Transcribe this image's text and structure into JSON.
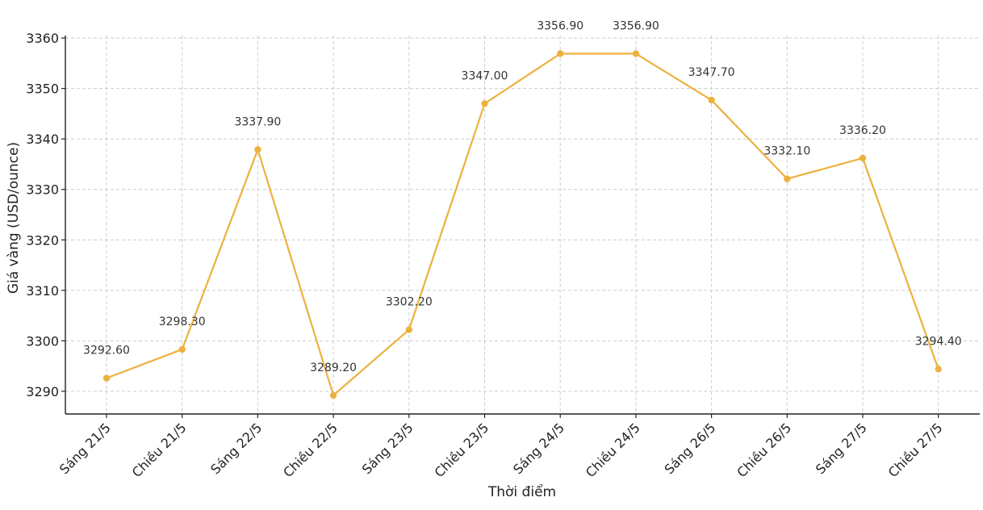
{
  "chart_data": {
    "type": "line",
    "title": "",
    "xlabel": "Thời điểm",
    "ylabel": "Giá vàng (USD/ounce)",
    "categories": [
      "Sáng 21/5",
      "Chiều 21/5",
      "Sáng 22/5",
      "Chiều 22/5",
      "Sáng 23/5",
      "Chiều 23/5",
      "Sáng 24/5",
      "Chiều 24/5",
      "Sáng 26/5",
      "Chiều 26/5",
      "Sáng 27/5",
      "Chiều 27/5"
    ],
    "series": [
      {
        "values": [
          3292.6,
          3298.3,
          3337.9,
          3289.2,
          3302.2,
          3347.0,
          3356.9,
          3356.9,
          3347.7,
          3332.1,
          3336.2,
          3294.4
        ],
        "labels": [
          "3292.60",
          "3298.30",
          "3337.90",
          "3289.20",
          "3302.20",
          "3347.00",
          "3356.90",
          "3356.90",
          "3347.70",
          "3332.10",
          "3336.20",
          "3294.40"
        ],
        "color": "#EDB13F"
      }
    ],
    "yticks": [
      3290,
      3300,
      3310,
      3320,
      3330,
      3340,
      3350,
      3360
    ],
    "ylim": [
      3285.5,
      3360.5
    ],
    "grid": true,
    "legend": "none"
  }
}
